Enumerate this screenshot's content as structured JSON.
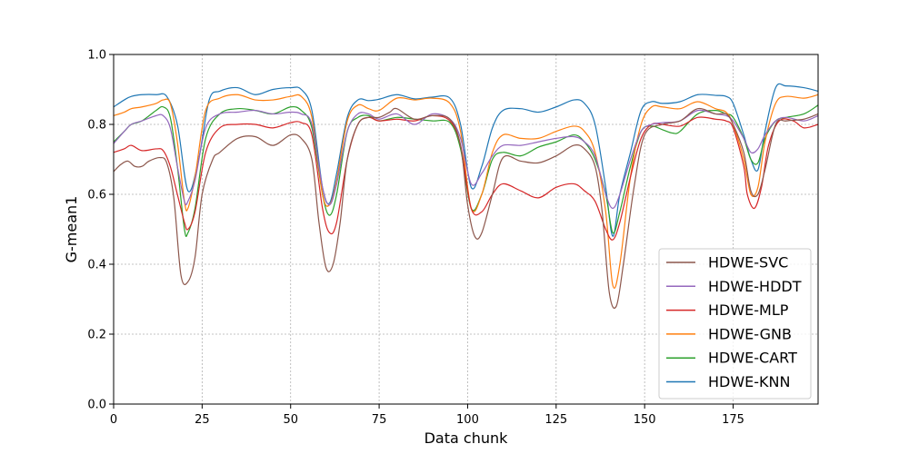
{
  "chart_data": {
    "type": "line",
    "title": "",
    "xlabel": "Data chunk",
    "ylabel": "G-mean1",
    "xlim": [
      0,
      199
    ],
    "ylim": [
      0.0,
      1.0
    ],
    "xticks": [
      0,
      25,
      50,
      75,
      100,
      125,
      150,
      175
    ],
    "xtick_labels": [
      "0",
      "25",
      "50",
      "75",
      "100",
      "125",
      "150",
      "175"
    ],
    "yticks": [
      0.0,
      0.2,
      0.4,
      0.6,
      0.8,
      1.0
    ],
    "ytick_labels": [
      "0.0",
      "0.2",
      "0.4",
      "0.6",
      "0.8",
      "1.0"
    ],
    "grid": true,
    "legend_position": "lower-right",
    "legend_order": [
      "HDWE-SVC",
      "HDWE-HDDT",
      "HDWE-MLP",
      "HDWE-GNB",
      "HDWE-CART",
      "HDWE-KNN"
    ],
    "series": [
      {
        "name": "HDWE-KNN",
        "color": "#1f77b4",
        "x": [
          0,
          3,
          5,
          8,
          12,
          15,
          18,
          21,
          24,
          27,
          30,
          35,
          40,
          45,
          50,
          53,
          56,
          59,
          61,
          63,
          66,
          69,
          72,
          75,
          80,
          85,
          90,
          95,
          98,
          101,
          104,
          107,
          110,
          115,
          120,
          125,
          130,
          133,
          136,
          139,
          141,
          143,
          146,
          149,
          152,
          155,
          160,
          165,
          170,
          173,
          175,
          178,
          180,
          182,
          184,
          187,
          190,
          195,
          199
        ],
        "y": [
          0.85,
          0.87,
          0.88,
          0.885,
          0.885,
          0.88,
          0.8,
          0.61,
          0.7,
          0.87,
          0.895,
          0.905,
          0.885,
          0.9,
          0.905,
          0.9,
          0.84,
          0.62,
          0.575,
          0.66,
          0.82,
          0.87,
          0.868,
          0.872,
          0.885,
          0.873,
          0.878,
          0.875,
          0.8,
          0.62,
          0.68,
          0.79,
          0.84,
          0.845,
          0.835,
          0.85,
          0.87,
          0.86,
          0.8,
          0.62,
          0.48,
          0.6,
          0.72,
          0.84,
          0.865,
          0.86,
          0.865,
          0.885,
          0.883,
          0.88,
          0.86,
          0.77,
          0.7,
          0.67,
          0.78,
          0.905,
          0.91,
          0.905,
          0.895
        ]
      },
      {
        "name": "HDWE-CART",
        "color": "#2ca02c",
        "x": [
          0,
          3,
          5,
          8,
          12,
          14,
          16,
          18,
          20,
          21,
          23,
          26,
          30,
          35,
          40,
          45,
          50,
          53,
          56,
          59,
          61,
          63,
          66,
          69,
          72,
          75,
          80,
          85,
          90,
          95,
          98,
          101,
          104,
          107,
          110,
          115,
          120,
          125,
          130,
          133,
          136,
          139,
          141,
          143,
          146,
          149,
          152,
          155,
          158,
          160,
          165,
          170,
          173,
          175,
          178,
          180,
          182,
          184,
          187,
          190,
          195,
          199
        ],
        "y": [
          0.75,
          0.78,
          0.8,
          0.81,
          0.84,
          0.85,
          0.82,
          0.68,
          0.5,
          0.49,
          0.56,
          0.76,
          0.83,
          0.845,
          0.84,
          0.83,
          0.85,
          0.84,
          0.79,
          0.6,
          0.54,
          0.6,
          0.78,
          0.82,
          0.825,
          0.81,
          0.82,
          0.815,
          0.81,
          0.805,
          0.73,
          0.56,
          0.6,
          0.7,
          0.72,
          0.71,
          0.735,
          0.75,
          0.77,
          0.75,
          0.7,
          0.6,
          0.49,
          0.55,
          0.68,
          0.78,
          0.795,
          0.785,
          0.775,
          0.78,
          0.83,
          0.84,
          0.83,
          0.82,
          0.76,
          0.7,
          0.69,
          0.76,
          0.81,
          0.82,
          0.83,
          0.855
        ]
      },
      {
        "name": "HDWE-GNB",
        "color": "#ff7f0e",
        "x": [
          0,
          3,
          5,
          8,
          12,
          14,
          16,
          18,
          20,
          21,
          23,
          26,
          30,
          35,
          40,
          45,
          50,
          53,
          56,
          59,
          61,
          63,
          66,
          69,
          72,
          75,
          80,
          85,
          90,
          95,
          98,
          101,
          104,
          107,
          110,
          115,
          120,
          125,
          130,
          133,
          136,
          139,
          141,
          143,
          146,
          149,
          152,
          155,
          160,
          165,
          170,
          173,
          175,
          178,
          180,
          182,
          184,
          187,
          190,
          195,
          199
        ],
        "y": [
          0.825,
          0.835,
          0.845,
          0.85,
          0.86,
          0.87,
          0.86,
          0.75,
          0.58,
          0.56,
          0.65,
          0.84,
          0.875,
          0.885,
          0.87,
          0.87,
          0.88,
          0.88,
          0.82,
          0.6,
          0.57,
          0.64,
          0.81,
          0.855,
          0.845,
          0.84,
          0.875,
          0.87,
          0.875,
          0.86,
          0.78,
          0.56,
          0.6,
          0.72,
          0.77,
          0.76,
          0.76,
          0.78,
          0.795,
          0.78,
          0.72,
          0.55,
          0.34,
          0.4,
          0.65,
          0.8,
          0.85,
          0.85,
          0.845,
          0.865,
          0.845,
          0.835,
          0.8,
          0.7,
          0.6,
          0.62,
          0.75,
          0.86,
          0.88,
          0.875,
          0.885
        ]
      },
      {
        "name": "HDWE-MLP",
        "color": "#d62728",
        "x": [
          0,
          3,
          5,
          8,
          12,
          14,
          16,
          18,
          20,
          21,
          23,
          26,
          30,
          35,
          40,
          45,
          50,
          53,
          56,
          59,
          61,
          63,
          66,
          69,
          72,
          75,
          80,
          85,
          90,
          95,
          98,
          101,
          104,
          107,
          110,
          115,
          120,
          125,
          130,
          133,
          136,
          139,
          141,
          143,
          146,
          149,
          152,
          155,
          160,
          165,
          170,
          173,
          175,
          178,
          179,
          181,
          183,
          185,
          188,
          192,
          195,
          199
        ],
        "y": [
          0.72,
          0.73,
          0.74,
          0.725,
          0.73,
          0.725,
          0.68,
          0.6,
          0.52,
          0.5,
          0.55,
          0.72,
          0.79,
          0.8,
          0.8,
          0.79,
          0.805,
          0.805,
          0.77,
          0.56,
          0.49,
          0.52,
          0.7,
          0.8,
          0.82,
          0.81,
          0.815,
          0.81,
          0.825,
          0.81,
          0.74,
          0.56,
          0.55,
          0.6,
          0.63,
          0.61,
          0.59,
          0.62,
          0.63,
          0.61,
          0.58,
          0.5,
          0.47,
          0.52,
          0.65,
          0.76,
          0.8,
          0.8,
          0.795,
          0.82,
          0.815,
          0.81,
          0.79,
          0.68,
          0.6,
          0.56,
          0.62,
          0.74,
          0.81,
          0.81,
          0.79,
          0.8
        ]
      },
      {
        "name": "HDWE-HDDT",
        "color": "#9467bd",
        "x": [
          0,
          3,
          5,
          8,
          12,
          14,
          16,
          18,
          20,
          21,
          23,
          26,
          30,
          35,
          40,
          45,
          50,
          53,
          56,
          59,
          61,
          63,
          66,
          69,
          72,
          75,
          80,
          85,
          90,
          95,
          98,
          101,
          104,
          107,
          110,
          115,
          120,
          125,
          130,
          133,
          136,
          139,
          141,
          143,
          146,
          149,
          152,
          155,
          160,
          165,
          170,
          173,
          175,
          178,
          180,
          182,
          184,
          187,
          190,
          195,
          199
        ],
        "y": [
          0.745,
          0.78,
          0.8,
          0.81,
          0.825,
          0.825,
          0.79,
          0.68,
          0.58,
          0.58,
          0.64,
          0.79,
          0.83,
          0.835,
          0.84,
          0.83,
          0.835,
          0.83,
          0.8,
          0.62,
          0.57,
          0.63,
          0.78,
          0.83,
          0.83,
          0.815,
          0.83,
          0.8,
          0.83,
          0.815,
          0.76,
          0.63,
          0.66,
          0.71,
          0.74,
          0.74,
          0.75,
          0.76,
          0.765,
          0.75,
          0.71,
          0.6,
          0.56,
          0.6,
          0.7,
          0.78,
          0.8,
          0.805,
          0.81,
          0.84,
          0.83,
          0.825,
          0.81,
          0.76,
          0.72,
          0.73,
          0.77,
          0.81,
          0.82,
          0.81,
          0.825
        ]
      },
      {
        "name": "HDWE-SVC",
        "color": "#8c564b",
        "x": [
          0,
          2,
          4,
          6,
          8,
          10,
          13,
          15,
          17,
          19,
          21,
          23,
          25,
          28,
          30,
          35,
          40,
          45,
          50,
          53,
          56,
          58,
          60,
          62,
          64,
          66,
          69,
          72,
          75,
          78,
          80,
          85,
          90,
          95,
          98,
          100,
          102,
          104,
          107,
          110,
          115,
          120,
          125,
          130,
          133,
          136,
          138,
          140,
          142,
          144,
          147,
          150,
          155,
          160,
          165,
          170,
          173,
          175,
          178,
          180,
          182,
          184,
          187,
          190,
          195,
          199
        ],
        "y": [
          0.665,
          0.685,
          0.695,
          0.68,
          0.68,
          0.695,
          0.705,
          0.69,
          0.59,
          0.37,
          0.35,
          0.42,
          0.6,
          0.7,
          0.72,
          0.76,
          0.765,
          0.74,
          0.77,
          0.76,
          0.7,
          0.52,
          0.39,
          0.4,
          0.52,
          0.7,
          0.8,
          0.82,
          0.82,
          0.835,
          0.845,
          0.815,
          0.825,
          0.815,
          0.74,
          0.57,
          0.48,
          0.49,
          0.6,
          0.705,
          0.695,
          0.69,
          0.71,
          0.74,
          0.73,
          0.68,
          0.55,
          0.32,
          0.28,
          0.4,
          0.62,
          0.77,
          0.8,
          0.81,
          0.845,
          0.83,
          0.83,
          0.8,
          0.72,
          0.61,
          0.6,
          0.67,
          0.8,
          0.81,
          0.815,
          0.83
        ]
      }
    ]
  }
}
